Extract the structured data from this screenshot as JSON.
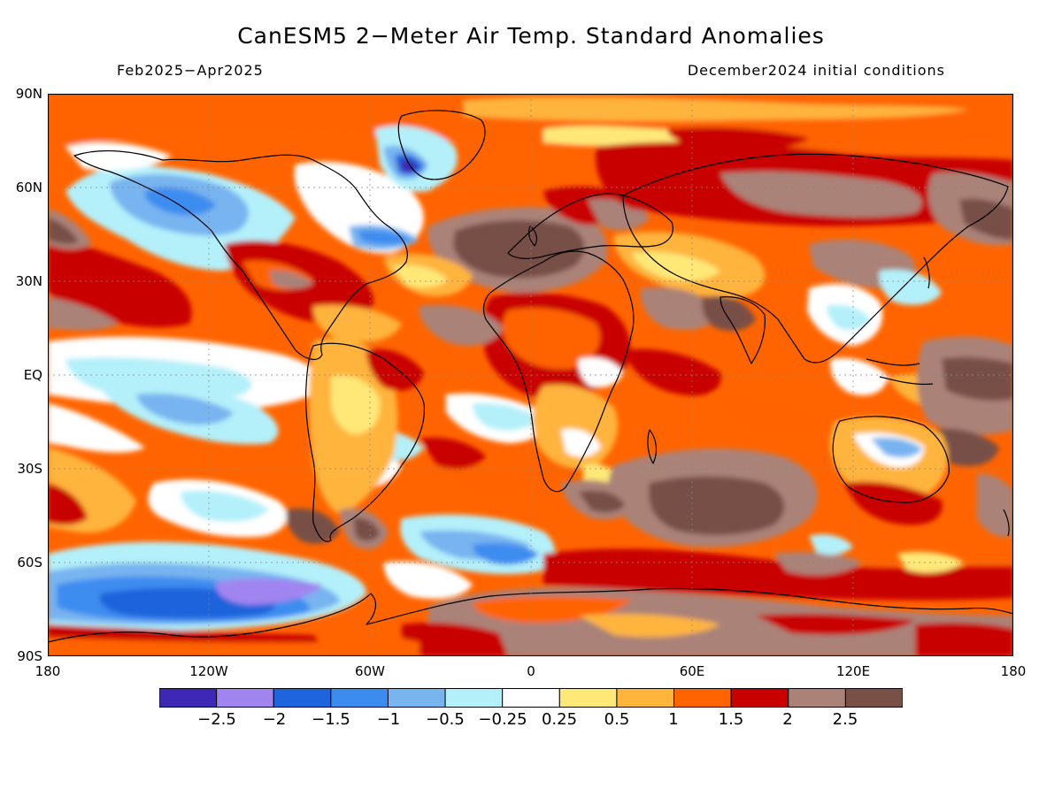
{
  "header": {
    "title": "CanESM5 2-Meter Air Temp. Standard Anomalies",
    "period": "Feb2025-Apr2025",
    "init": "December2024 initial conditions"
  },
  "axes": {
    "lat_labels": [
      "90N",
      "60N",
      "30N",
      "EQ",
      "30S",
      "60S",
      "90S"
    ],
    "lon_labels": [
      "180",
      "120W",
      "60W",
      "0",
      "60E",
      "120E",
      "180"
    ]
  },
  "legend": {
    "labels": [
      "-2.5",
      "-2",
      "-1.5",
      "-1",
      "-0.5",
      "-0.25",
      "0.25",
      "0.5",
      "1",
      "1.5",
      "2",
      "2.5"
    ],
    "colors": [
      "#3c28b4",
      "#a084f0",
      "#1e64dc",
      "#3c8cf0",
      "#78b4f0",
      "#b4f0fa",
      "#ffffff",
      "#ffe878",
      "#ffb43c",
      "#ff6400",
      "#c80000",
      "#aa8278",
      "#785046"
    ]
  }
}
